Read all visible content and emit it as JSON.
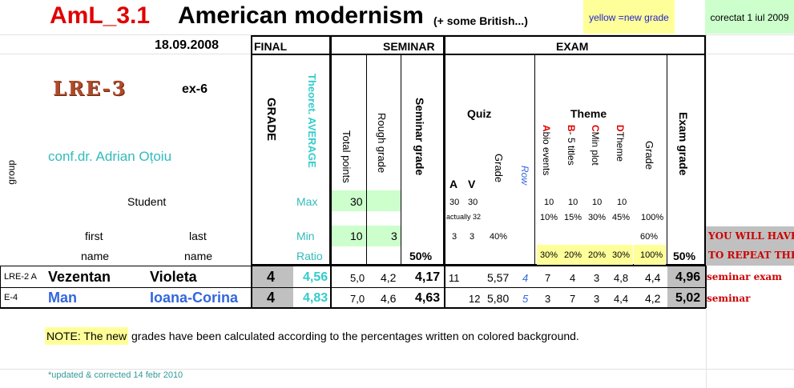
{
  "header": {
    "course_code": "AmL_3.1",
    "course_title": "American modernism",
    "subtitle": "(+ some British...)",
    "legend_yellow": "yellow =new grade",
    "corrected_note": "corectat 1 iul 2009",
    "date": "18.09.2008",
    "group_code": "LRE-3",
    "exam_label": "ex-6",
    "teacher": "conf.dr. Adrian Oțoiu"
  },
  "sections": {
    "final": "FINAL",
    "seminar": "SEMINAR",
    "exam": "EXAM"
  },
  "columns": {
    "group": "group",
    "grade": "GRADE",
    "theoret_average": "Theoret. AVERAGE",
    "total_points": "Total points",
    "rough_grade": "Rough grade",
    "seminar_grade": "Seminar grade",
    "quiz": "Quiz",
    "quiz_a": "A",
    "quiz_v": "V",
    "quiz_grade": "Grade",
    "row": "Row",
    "theme": "Theme",
    "theme_a_letter": "A",
    "theme_a_text": "bio events",
    "theme_b_letter": "B",
    "theme_b_text": "- 5 titles",
    "theme_c_letter": "C",
    "theme_c_text": "Min plot",
    "theme_d_letter": "D",
    "theme_d_text": "Theme",
    "theme_grade": "Grade",
    "exam_grade": "Exam grade"
  },
  "labels": {
    "student": "Student",
    "max": "Max",
    "min": "Min",
    "ratio": "Ratio",
    "first": "first",
    "last": "last",
    "name_first": "name",
    "name_last": "name"
  },
  "max_row": {
    "total_points": "30",
    "quiz_a": "30",
    "quiz_v": "30",
    "actually": "actually 32",
    "theme_a": "10",
    "theme_b": "10",
    "theme_c": "10",
    "theme_d": "10",
    "pct_a": "10%",
    "pct_b": "15%",
    "pct_c": "30%",
    "pct_d": "45%",
    "pct_grade": "100%"
  },
  "min_row": {
    "total_points": "10",
    "rough_grade": "3",
    "quiz_a": "3",
    "quiz_v": "3",
    "quiz_pct": "40%",
    "theme_grade_pct": "60%"
  },
  "ratio_row": {
    "seminar_pct": "50%",
    "pct_a": "30%",
    "pct_b": "20%",
    "pct_c": "20%",
    "pct_d": "30%",
    "pct_grade": "100%",
    "exam_pct": "50%"
  },
  "warning": {
    "line1": "YOU WILL HAVE",
    "line2": "TO REPEAT THE"
  },
  "students": [
    {
      "group": "LRE-2  A",
      "first": "Vezentan",
      "last": "Violeta",
      "grade": "4",
      "average": "4,56",
      "total_points": "5,0",
      "rough_grade": "4,2",
      "seminar_grade": "4,17",
      "quiz_a": "11",
      "quiz_v": "",
      "quiz_grade": "5,57",
      "row": "4",
      "theme_a": "7",
      "theme_b": "4",
      "theme_c": "3",
      "theme_d": "4,8",
      "theme_grade": "4,4",
      "exam_grade": "4,96",
      "repeat": "seminar   exam"
    },
    {
      "group": "E-4",
      "first": "Man",
      "last": "Ioana-Corina",
      "grade": "4",
      "average": "4,83",
      "total_points": "7,0",
      "rough_grade": "4,6",
      "seminar_grade": "4,63",
      "quiz_a": "",
      "quiz_v": "12",
      "quiz_grade": "5,80",
      "row": "5",
      "theme_a": "3",
      "theme_b": "7",
      "theme_c": "3",
      "theme_d": "4,4",
      "theme_grade": "4,2",
      "exam_grade": "5,02",
      "repeat": "seminar"
    }
  ],
  "note": {
    "highlight": "NOTE: The new",
    "rest": " grades have been calculated according to the percentages written on colored background."
  },
  "updated": "*updated & corrected 14 febr 2010",
  "colors": {
    "title_red": "#e00000",
    "accent_cyan": "#33cccc",
    "blue": "#3366dd",
    "dark_red": "#cc0000",
    "yellow": "#ffff99",
    "green": "#ccffcc",
    "gray": "#c0c0c0"
  }
}
